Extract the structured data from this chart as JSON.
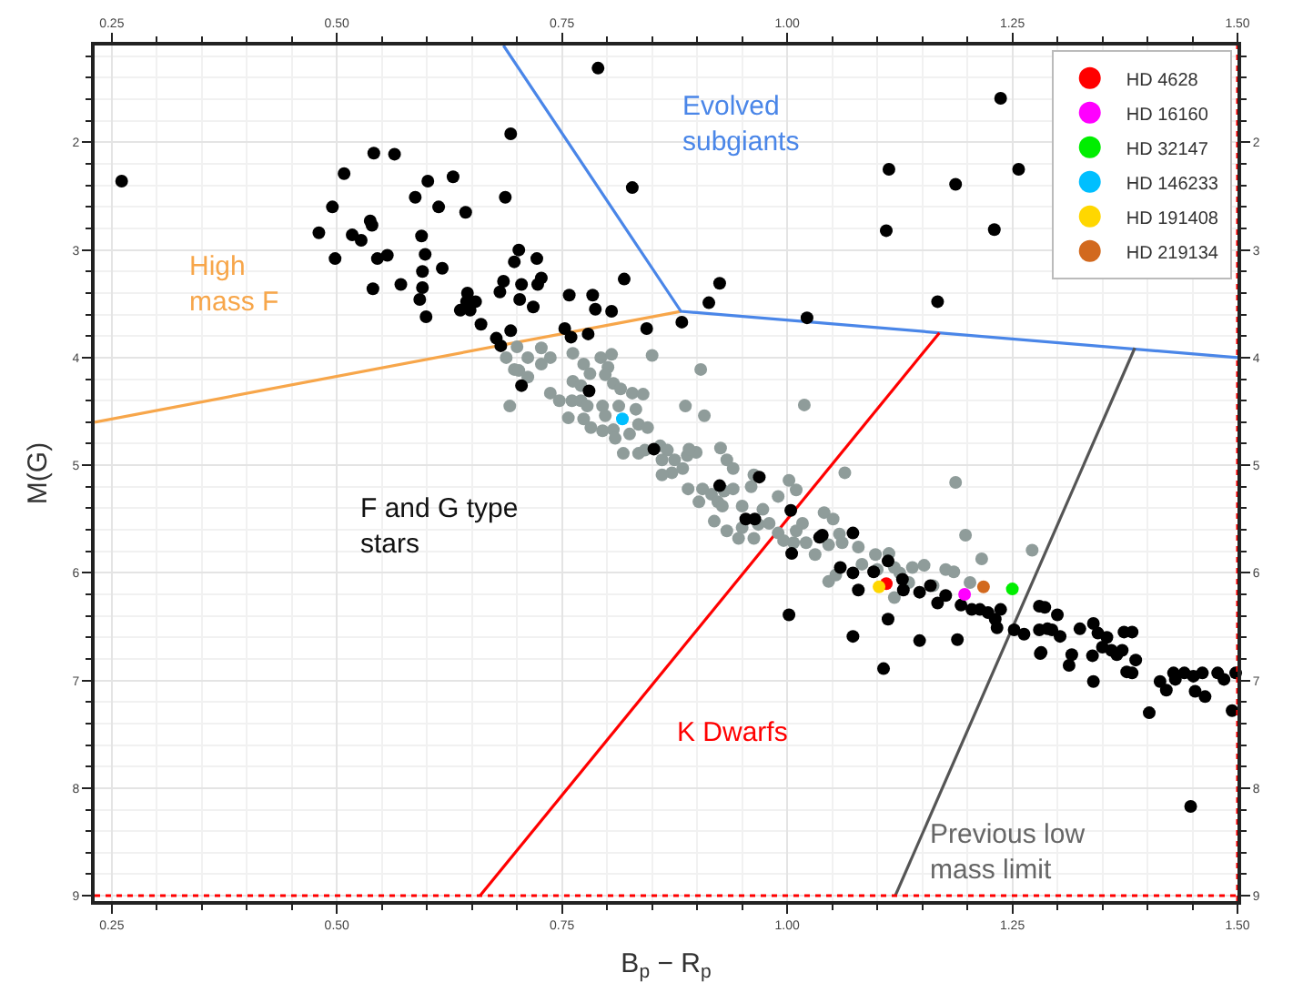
{
  "chart_data": {
    "type": "scatter",
    "xlabel": "B$_{p}$ − R$_{p}$",
    "ylabel": "M(G)",
    "xlim": [
      0.231,
      1.5
    ],
    "ylim": [
      9.05,
      1.1
    ],
    "xticks": [
      0.25,
      {
        "value": 0.5,
        "label": "0.50"
      },
      0.75,
      {
        "value": 1.0,
        "label": "1.00"
      },
      1.25,
      {
        "value": 1.5,
        "label": "1.50"
      }
    ],
    "yticks": [
      2,
      3,
      4,
      5,
      6,
      7,
      8,
      9
    ],
    "x2lim": [
      0.231,
      1.5
    ],
    "x2ticks": [
      0.25,
      {
        "value": 0.5,
        "label": "0.50"
      },
      0.75,
      {
        "value": 1.0,
        "label": "1.00"
      },
      1.25,
      {
        "value": 1.5,
        "label": "1.50"
      }
    ],
    "y2lim": [
      9.05,
      1.1
    ],
    "y2ticks": [
      2,
      3,
      4,
      5,
      6,
      7,
      8,
      9
    ],
    "grid": true,
    "legend": "top right",
    "marker": "circle",
    "line_style": "solid",
    "ref_lines": [
      {
        "axis": "y",
        "value": 9,
        "color": "#ff0000",
        "line_style": "dotted"
      },
      {
        "axis": "x",
        "value": 1.5,
        "color": "#ff0000",
        "line_style": "dotted"
      }
    ],
    "annotations": [
      "High\nmass F",
      "Evolved\nsubgiants",
      "K Dwarfs",
      "Previous low\nmass limit",
      "F and G type\nstars"
    ],
    "series": [
      {
        "type": "line",
        "marker": "none",
        "color": "#f7a64a",
        "x": [
          0.231,
          0.882
        ],
        "values": [
          4.6,
          3.57
        ]
      },
      {
        "type": "line",
        "marker": "none",
        "color": "#4a86e8",
        "x": [
          0.685,
          0.882,
          1.5
        ],
        "values": [
          1.1,
          3.57,
          4.0
        ]
      },
      {
        "type": "line",
        "marker": "none",
        "color": "#ff0000",
        "x": [
          0.659,
          1.169
        ],
        "values": [
          9.0,
          3.77
        ]
      },
      {
        "type": "line",
        "marker": "none",
        "color": "#555555",
        "x": [
          1.12,
          1.386
        ],
        "values": [
          9.0,
          3.91
        ]
      },
      {
        "color": "#8f9c9a",
        "x": [
          0.688,
          0.7,
          0.697,
          0.712,
          0.727,
          0.737,
          0.727,
          0.702,
          0.712,
          0.692,
          0.762,
          0.774,
          0.793,
          0.805,
          0.801,
          0.781,
          0.798,
          0.762,
          0.771,
          0.807,
          0.815,
          0.828,
          0.84,
          0.85,
          0.904,
          0.737,
          0.747,
          0.761,
          0.771,
          0.778,
          0.795,
          0.813,
          0.832,
          0.757,
          0.774,
          0.798,
          0.782,
          0.795,
          0.807,
          0.809,
          0.825,
          0.835,
          0.845,
          0.887,
          0.908,
          1.019,
          0.818,
          0.835,
          0.842,
          0.859,
          0.867,
          0.875,
          0.889,
          0.899,
          0.891,
          0.861,
          0.872,
          0.861,
          0.884,
          0.926,
          0.933,
          0.94,
          0.89,
          0.906,
          0.916,
          0.902,
          0.93,
          0.94,
          0.96,
          0.963,
          0.923,
          0.928,
          0.95,
          0.973,
          0.99,
          1.002,
          1.01,
          0.919,
          0.933,
          0.95,
          0.968,
          0.98,
          0.99,
          0.996,
          0.946,
          0.963,
          1.01,
          1.021,
          1.007,
          1.031,
          1.017,
          1.064,
          1.041,
          1.051,
          1.058,
          1.046,
          1.061,
          1.079,
          1.083,
          1.098,
          1.113,
          1.1,
          1.119,
          1.125,
          1.139,
          1.152,
          1.119,
          1.135,
          1.162,
          1.176,
          1.185,
          1.187,
          1.198,
          1.203,
          1.216,
          1.272,
          1.046,
          1.054
        ],
        "values": [
          4.0,
          3.9,
          4.11,
          4.0,
          3.91,
          4.0,
          4.06,
          4.12,
          4.18,
          4.45,
          3.96,
          4.06,
          4.0,
          3.97,
          4.09,
          4.15,
          4.16,
          4.22,
          4.26,
          4.24,
          4.29,
          4.33,
          4.34,
          3.98,
          4.11,
          4.33,
          4.4,
          4.4,
          4.4,
          4.45,
          4.45,
          4.45,
          4.48,
          4.56,
          4.57,
          4.54,
          4.65,
          4.68,
          4.67,
          4.75,
          4.71,
          4.62,
          4.65,
          4.45,
          4.54,
          4.44,
          4.89,
          4.89,
          4.86,
          4.82,
          4.86,
          4.95,
          4.91,
          4.88,
          4.85,
          4.95,
          5.07,
          5.09,
          5.03,
          4.84,
          4.95,
          5.03,
          5.22,
          5.22,
          5.27,
          5.34,
          5.24,
          5.22,
          5.2,
          5.09,
          5.34,
          5.38,
          5.38,
          5.41,
          5.29,
          5.14,
          5.23,
          5.52,
          5.61,
          5.58,
          5.55,
          5.54,
          5.63,
          5.7,
          5.68,
          5.68,
          5.61,
          5.72,
          5.72,
          5.83,
          5.54,
          5.07,
          5.44,
          5.5,
          5.64,
          5.74,
          5.72,
          5.76,
          5.92,
          5.83,
          5.82,
          5.97,
          5.95,
          6.0,
          5.95,
          5.93,
          6.23,
          6.09,
          6.12,
          5.97,
          5.99,
          5.16,
          5.65,
          6.09,
          5.87,
          5.79,
          6.08,
          6.02
        ]
      },
      {
        "color": "#000000",
        "x": [
          0.261,
          0.79,
          0.693,
          0.541,
          0.564,
          0.508,
          0.601,
          0.629,
          0.828,
          0.495,
          0.587,
          0.613,
          0.643,
          0.687,
          0.537,
          0.539,
          0.48,
          0.517,
          0.527,
          0.594,
          0.498,
          0.545,
          0.556,
          0.598,
          0.702,
          0.697,
          0.722,
          0.617,
          0.595,
          0.685,
          0.705,
          0.727,
          0.723,
          0.819,
          0.54,
          0.571,
          0.595,
          0.681,
          0.645,
          0.758,
          0.784,
          0.592,
          0.703,
          0.644,
          0.654,
          0.599,
          0.637,
          0.648,
          0.718,
          0.787,
          0.805,
          0.66,
          0.693,
          0.753,
          0.779,
          0.76,
          0.844,
          0.677,
          0.682,
          0.705,
          0.78,
          0.852,
          1.237,
          1.113,
          1.257,
          1.187,
          1.11,
          1.23,
          0.925,
          0.913,
          1.167,
          0.883,
          1.022,
          0.969,
          0.925,
          0.954,
          0.964,
          1.004,
          1.005,
          1.036,
          1.039,
          1.073,
          1.059,
          1.073,
          1.079,
          1.096,
          1.112,
          1.128,
          1.129,
          1.147,
          1.159,
          1.167,
          1.176,
          1.193,
          1.205,
          1.214,
          1.223,
          1.237,
          1.231,
          1.233,
          1.112,
          1.002,
          1.073,
          1.147,
          1.189,
          1.107,
          1.252,
          1.263,
          1.28,
          1.286,
          1.28,
          1.294,
          1.282,
          1.3,
          1.303,
          1.313,
          1.316,
          1.281,
          1.325,
          1.34,
          1.339,
          1.34,
          1.345,
          1.35,
          1.355,
          1.36,
          1.366,
          1.372,
          1.374,
          1.383,
          1.377,
          1.383,
          1.387,
          1.402,
          1.414,
          1.421,
          1.429,
          1.431,
          1.441,
          1.451,
          1.453,
          1.461,
          1.464,
          1.478,
          1.485,
          1.494,
          1.498,
          1.448,
          1.289
        ],
        "values": [
          2.36,
          1.31,
          1.92,
          2.1,
          2.11,
          2.29,
          2.36,
          2.32,
          2.42,
          2.6,
          2.51,
          2.6,
          2.65,
          2.51,
          2.73,
          2.77,
          2.84,
          2.86,
          2.91,
          2.87,
          3.08,
          3.08,
          3.05,
          3.04,
          3.0,
          3.11,
          3.08,
          3.17,
          3.2,
          3.29,
          3.32,
          3.26,
          3.32,
          3.27,
          3.36,
          3.32,
          3.35,
          3.39,
          3.4,
          3.42,
          3.42,
          3.46,
          3.46,
          3.48,
          3.48,
          3.62,
          3.56,
          3.56,
          3.53,
          3.55,
          3.57,
          3.69,
          3.75,
          3.73,
          3.78,
          3.81,
          3.73,
          3.82,
          3.89,
          4.26,
          4.31,
          4.85,
          1.59,
          2.25,
          2.25,
          2.39,
          2.82,
          2.81,
          3.31,
          3.49,
          3.48,
          3.67,
          3.63,
          5.11,
          5.19,
          5.5,
          5.5,
          5.42,
          5.82,
          5.67,
          5.65,
          5.63,
          5.95,
          6.0,
          6.16,
          5.99,
          5.89,
          6.06,
          6.16,
          6.18,
          6.12,
          6.28,
          6.21,
          6.3,
          6.34,
          6.34,
          6.37,
          6.34,
          6.43,
          6.51,
          6.43,
          6.39,
          6.59,
          6.63,
          6.62,
          6.89,
          6.53,
          6.57,
          6.31,
          6.32,
          6.53,
          6.53,
          6.74,
          6.39,
          6.59,
          6.86,
          6.76,
          6.75,
          6.52,
          6.47,
          6.77,
          7.01,
          6.56,
          6.69,
          6.6,
          6.72,
          6.76,
          6.72,
          6.55,
          6.55,
          6.92,
          6.93,
          6.81,
          7.3,
          7.01,
          7.09,
          6.93,
          6.99,
          6.93,
          6.96,
          7.1,
          6.93,
          7.15,
          6.93,
          6.99,
          7.28,
          6.93,
          8.17,
          6.52
        ]
      },
      {
        "name": "HD 4628",
        "color": "#ff0000",
        "x": [
          1.11
        ],
        "values": [
          6.1
        ]
      },
      {
        "name": "HD 16160",
        "color": "#ff00ff",
        "x": [
          1.197
        ],
        "values": [
          6.2
        ]
      },
      {
        "name": "HD 32147",
        "color": "#00ee00",
        "x": [
          1.25
        ],
        "values": [
          6.15
        ]
      },
      {
        "name": "HD 146233",
        "color": "#00bfff",
        "x": [
          0.817
        ],
        "values": [
          4.57
        ]
      },
      {
        "name": "HD 191408",
        "color": "#ffd700",
        "x": [
          1.102
        ],
        "values": [
          6.13
        ]
      },
      {
        "name": "HD 219134",
        "color": "#d2691e",
        "x": [
          1.218
        ],
        "values": [
          6.13
        ]
      }
    ]
  }
}
